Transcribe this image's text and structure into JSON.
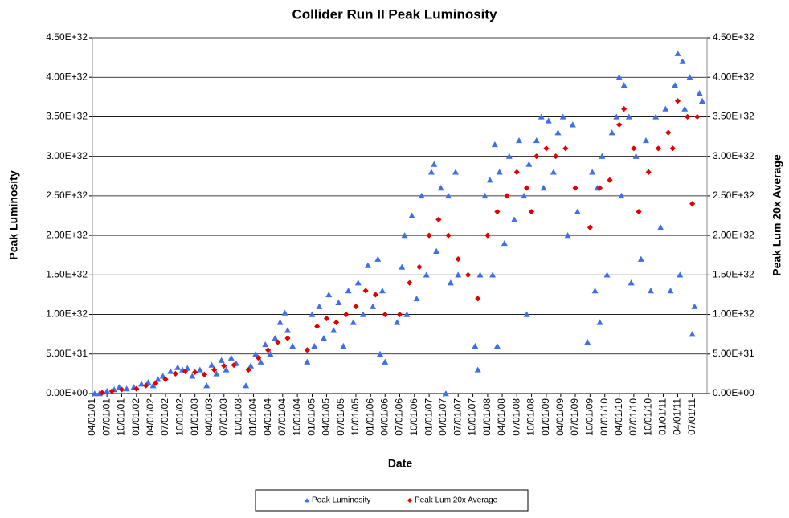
{
  "chart_data": {
    "type": "scatter",
    "title": "Collider Run II Peak Luminosity",
    "xlabel": "Date",
    "ylabel": "Peak Luminosity",
    "y2label": "Peak Lum 20x Average",
    "xlim": [
      "04/01/01",
      "10/01/11"
    ],
    "xticks": [
      "04/01/01",
      "07/01/01",
      "10/01/01",
      "01/01/02",
      "04/01/02",
      "07/01/02",
      "10/01/02",
      "01/01/03",
      "04/01/03",
      "07/01/03",
      "10/01/03",
      "01/01/04",
      "04/01/04",
      "07/01/04",
      "10/01/04",
      "01/01/05",
      "04/01/05",
      "07/01/05",
      "10/01/05",
      "01/01/06",
      "04/01/06",
      "07/01/06",
      "10/01/06",
      "01/01/07",
      "04/01/07",
      "07/01/07",
      "10/01/07",
      "01/01/08",
      "04/01/08",
      "07/01/08",
      "10/01/08",
      "01/01/09",
      "04/01/09",
      "07/01/09",
      "10/01/09",
      "01/01/10",
      "04/01/10",
      "07/01/10",
      "10/01/10",
      "01/01/11",
      "04/01/11",
      "07/01/11"
    ],
    "ylim": [
      0,
      4.5e+32
    ],
    "yticks": [
      {
        "value": 0,
        "label": "0.00E+00"
      },
      {
        "value": 5e+31,
        "label": "5.00E+31"
      },
      {
        "value": 1e+32,
        "label": "1.00E+32"
      },
      {
        "value": 1.5e+32,
        "label": "1.50E+32"
      },
      {
        "value": 2e+32,
        "label": "2.00E+32"
      },
      {
        "value": 2.5e+32,
        "label": "2.50E+32"
      },
      {
        "value": 3e+32,
        "label": "3.00E+32"
      },
      {
        "value": 3.5e+32,
        "label": "3.50E+32"
      },
      {
        "value": 4e+32,
        "label": "4.00E+32"
      },
      {
        "value": 4.5e+32,
        "label": "4.50E+32"
      }
    ],
    "y2lim": [
      0,
      4.5e+32
    ],
    "y2ticks": [
      {
        "value": 0,
        "label": "0.00E+00"
      },
      {
        "value": 5e+31,
        "label": "5.00E+31"
      },
      {
        "value": 1e+32,
        "label": "1.00E+32"
      },
      {
        "value": 1.5e+32,
        "label": "1.50E+32"
      },
      {
        "value": 2e+32,
        "label": "2.00E+32"
      },
      {
        "value": 2.5e+32,
        "label": "2.50E+32"
      },
      {
        "value": 3e+32,
        "label": "3.00E+32"
      },
      {
        "value": 3.5e+32,
        "label": "3.50E+32"
      },
      {
        "value": 4e+32,
        "label": "4.00E+32"
      },
      {
        "value": 4.5e+32,
        "label": "4.50E+32"
      }
    ],
    "grid": true,
    "legend": "bottom",
    "series": [
      {
        "name": "Peak Luminosity",
        "color": "#3f6fe8",
        "marker": "triangle",
        "x": [
          "04/15/01",
          "05/15/01",
          "07/01/01",
          "08/15/01",
          "09/15/01",
          "11/01/01",
          "12/15/01",
          "02/01/02",
          "03/15/02",
          "04/15/02",
          "05/15/02",
          "06/15/02",
          "08/01/02",
          "09/15/02",
          "10/15/02",
          "11/15/02",
          "12/15/02",
          "02/01/03",
          "03/15/03",
          "04/15/03",
          "05/15/03",
          "06/15/03",
          "07/15/03",
          "08/15/03",
          "09/15/03",
          "11/15/03",
          "12/15/03",
          "01/15/04",
          "02/15/04",
          "03/15/04",
          "04/15/04",
          "05/15/04",
          "06/15/04",
          "07/15/04",
          "08/01/04",
          "09/01/04",
          "12/01/04",
          "01/01/05",
          "01/15/05",
          "02/15/05",
          "03/15/05",
          "04/15/05",
          "05/15/05",
          "06/15/05",
          "07/15/05",
          "08/15/05",
          "09/15/05",
          "10/15/05",
          "11/15/05",
          "12/15/05",
          "01/15/06",
          "02/15/06",
          "03/01/06",
          "03/15/06",
          "04/01/06",
          "06/15/06",
          "07/15/06",
          "08/01/06",
          "08/15/06",
          "09/15/06",
          "10/15/06",
          "11/15/06",
          "12/15/06",
          "01/15/07",
          "02/01/07",
          "02/15/07",
          "03/15/07",
          "04/15/07",
          "05/01/07",
          "05/15/07",
          "06/15/07",
          "07/01/07",
          "10/15/07",
          "11/01/07",
          "11/15/07",
          "12/15/07",
          "01/15/08",
          "02/01/08",
          "02/15/08",
          "03/01/08",
          "03/15/08",
          "04/15/08",
          "05/15/08",
          "06/15/08",
          "07/15/08",
          "08/15/08",
          "09/01/08",
          "09/15/08",
          "11/01/08",
          "12/01/08",
          "12/15/08",
          "01/15/09",
          "02/15/09",
          "03/15/09",
          "04/15/09",
          "05/15/09",
          "06/15/09",
          "07/15/09",
          "09/15/09",
          "10/15/09",
          "11/01/09",
          "11/15/09",
          "12/01/09",
          "12/15/09",
          "01/15/10",
          "02/15/10",
          "03/15/10",
          "04/01/10",
          "04/15/10",
          "05/01/10",
          "06/01/10",
          "06/15/10",
          "07/15/10",
          "08/15/10",
          "09/15/10",
          "10/15/10",
          "11/15/10",
          "12/15/10",
          "01/15/11",
          "02/15/11",
          "03/15/11",
          "04/01/11",
          "04/15/11",
          "05/01/11",
          "05/15/11",
          "06/15/11",
          "07/01/11",
          "07/15/11",
          "08/15/11",
          "09/01/11"
        ],
        "values": [
          0,
          0,
          3e+30,
          5e+30,
          8e+30,
          6e+30,
          8e+30,
          1.2e+31,
          1.4e+31,
          1e+31,
          1.8e+31,
          2.2e+31,
          2.8e+31,
          3.3e+31,
          3e+31,
          3.2e+31,
          2.2e+31,
          3e+31,
          1e+31,
          3.6e+31,
          2.5e+31,
          4.2e+31,
          3e+31,
          4.5e+31,
          3.8e+31,
          1e+31,
          3.5e+31,
          5e+31,
          4e+31,
          6.2e+31,
          5e+31,
          7e+31,
          9e+31,
          1.02e+32,
          8e+31,
          6e+31,
          4e+31,
          1e+32,
          6e+31,
          1.1e+32,
          7e+31,
          1.25e+32,
          8e+31,
          1.15e+32,
          6e+31,
          1.3e+32,
          9e+31,
          1.4e+32,
          1e+32,
          1.62e+32,
          1.1e+32,
          1.7e+32,
          5e+31,
          1.3e+32,
          4e+31,
          9e+31,
          1.6e+32,
          2e+32,
          1e+32,
          2.25e+32,
          1.2e+32,
          2.5e+32,
          1.5e+32,
          2.8e+32,
          2.9e+32,
          1.8e+32,
          2.6e+32,
          0,
          2.5e+32,
          1.4e+32,
          2.8e+32,
          1.5e+32,
          6e+31,
          3e+31,
          1.5e+32,
          2.5e+32,
          2.7e+32,
          1.5e+32,
          3.15e+32,
          6e+31,
          2.8e+32,
          1.9e+32,
          3e+32,
          2.2e+32,
          3.2e+32,
          2.5e+32,
          1e+32,
          2.9e+32,
          3.2e+32,
          3.5e+32,
          2.6e+32,
          3.45e+32,
          2.8e+32,
          3.3e+32,
          3.5e+32,
          2e+32,
          3.4e+32,
          2.3e+32,
          6.5e+31,
          2.8e+32,
          1.3e+32,
          2.6e+32,
          9e+31,
          3e+32,
          1.5e+32,
          3.3e+32,
          3.5e+32,
          4e+32,
          2.5e+32,
          3.9e+32,
          3.5e+32,
          1.4e+32,
          3e+32,
          1.7e+32,
          3.2e+32,
          1.3e+32,
          3.5e+32,
          2.1e+32,
          3.6e+32,
          1.3e+32,
          3.9e+32,
          4.3e+32,
          1.5e+32,
          4.2e+32,
          3.6e+32,
          4e+32,
          7.5e+31,
          1.1e+32,
          3.8e+32,
          3.7e+32
        ]
      },
      {
        "name": "Peak Lum 20x Average",
        "color": "#e00000",
        "marker": "diamond",
        "axis": "y2",
        "x": [
          "06/01/01",
          "08/01/01",
          "10/01/01",
          "01/01/02",
          "03/01/02",
          "05/01/02",
          "07/01/02",
          "09/01/02",
          "11/01/02",
          "01/01/03",
          "03/01/03",
          "05/01/03",
          "07/01/03",
          "09/01/03",
          "12/01/03",
          "02/01/04",
          "04/01/04",
          "06/01/04",
          "08/01/04",
          "12/01/04",
          "02/01/05",
          "04/01/05",
          "06/01/05",
          "08/01/05",
          "10/01/05",
          "12/01/05",
          "02/01/06",
          "04/01/06",
          "07/01/06",
          "09/01/06",
          "11/01/06",
          "01/01/07",
          "03/01/07",
          "05/01/07",
          "07/01/07",
          "09/01/07",
          "11/01/07",
          "01/01/08",
          "03/01/08",
          "05/01/08",
          "07/01/08",
          "09/01/08",
          "10/01/08",
          "11/01/08",
          "01/01/09",
          "03/01/09",
          "05/01/09",
          "07/01/09",
          "10/01/09",
          "12/01/09",
          "02/01/10",
          "04/01/10",
          "05/01/10",
          "07/01/10",
          "08/01/10",
          "10/01/10",
          "12/01/10",
          "02/01/11",
          "03/01/11",
          "04/01/11",
          "06/01/11",
          "07/01/11",
          "08/01/11"
        ],
        "values": [
          1e+30,
          3e+30,
          5e+30,
          6e+30,
          1e+31,
          1.3e+31,
          1.8e+31,
          2.5e+31,
          2.8e+31,
          2.7e+31,
          2.4e+31,
          3e+31,
          3.5e+31,
          3.6e+31,
          3e+31,
          4.5e+31,
          5.5e+31,
          6.5e+31,
          7e+31,
          5.5e+31,
          8.5e+31,
          9.5e+31,
          9e+31,
          1e+32,
          1.1e+32,
          1.3e+32,
          1.25e+32,
          1e+32,
          1e+32,
          1.4e+32,
          1.6e+32,
          2e+32,
          2.2e+32,
          2e+32,
          1.7e+32,
          1.5e+32,
          1.2e+32,
          2e+32,
          2.3e+32,
          2.5e+32,
          2.8e+32,
          2.6e+32,
          2.3e+32,
          3e+32,
          3.1e+32,
          3e+32,
          3.1e+32,
          2.6e+32,
          2.1e+32,
          2.6e+32,
          2.7e+32,
          3.4e+32,
          3.6e+32,
          3.1e+32,
          2.3e+32,
          2.8e+32,
          3.1e+32,
          3.3e+32,
          3.1e+32,
          3.7e+32,
          3.5e+32,
          2.4e+32,
          3.5e+32
        ]
      }
    ]
  }
}
